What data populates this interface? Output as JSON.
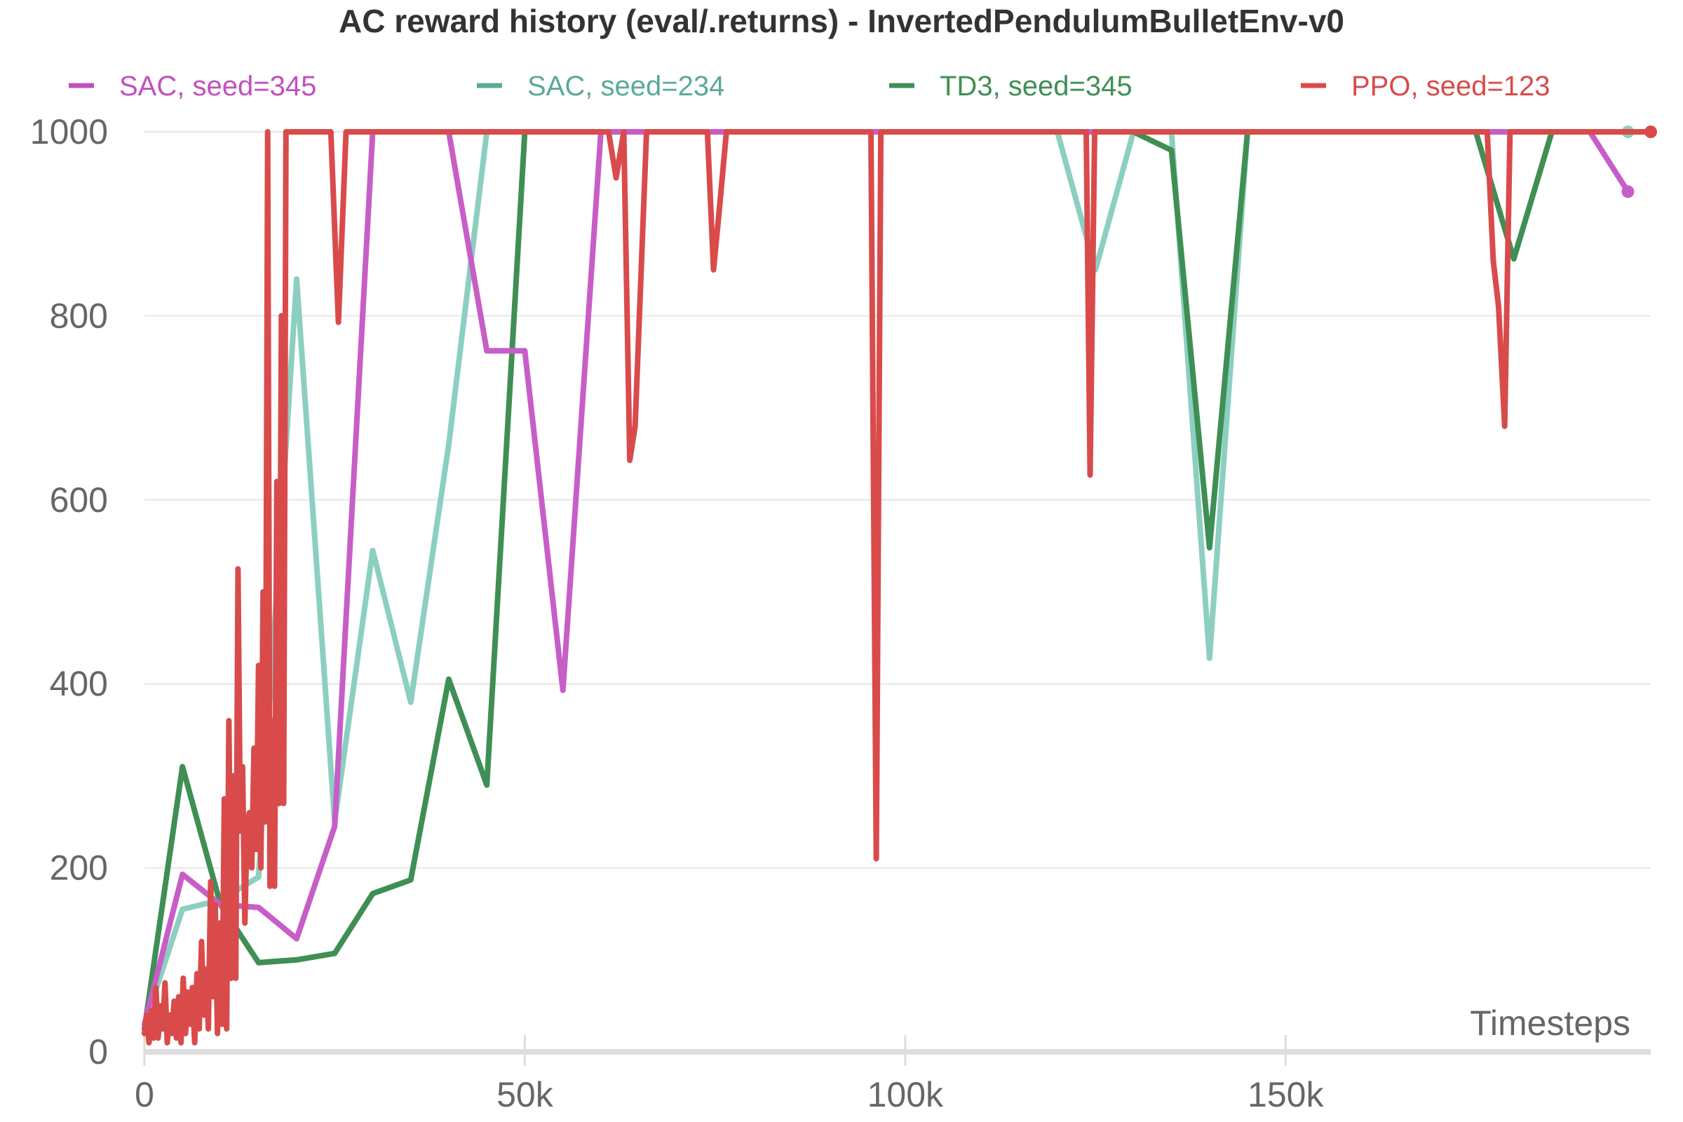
{
  "chart_data": {
    "type": "line",
    "title": "AC reward history (eval/.returns) - InvertedPendulumBulletEnv-v0",
    "xlabel": "Timesteps",
    "ylabel": "",
    "xlim": [
      0,
      198000
    ],
    "ylim": [
      0,
      1000
    ],
    "x_ticks": [
      0,
      50000,
      100000,
      150000
    ],
    "x_tick_labels": [
      "0",
      "50k",
      "100k",
      "150k"
    ],
    "y_ticks": [
      0,
      200,
      400,
      600,
      800,
      1000
    ],
    "y_tick_labels": [
      "0",
      "200",
      "400",
      "600",
      "800",
      "1000"
    ],
    "grid": true,
    "legend_position": "top",
    "series": [
      {
        "name": "SAC, seed=234",
        "color": "#8ccfc0",
        "legend_color": "#5aaa98",
        "end_marker": true,
        "x": [
          0,
          5000,
          10000,
          15000,
          20000,
          25000,
          30000,
          35000,
          40000,
          45000,
          50000,
          55000,
          60000,
          65000,
          70000,
          75000,
          80000,
          85000,
          90000,
          95000,
          100000,
          105000,
          110000,
          115000,
          120000,
          125000,
          130000,
          135000,
          140000,
          145000,
          150000,
          155000,
          160000,
          165000,
          170000,
          175000,
          180000,
          185000,
          190000,
          195000
        ],
        "y": [
          30,
          155,
          165,
          190,
          840,
          250,
          545,
          380,
          660,
          1000,
          1000,
          1000,
          1000,
          1000,
          1000,
          1000,
          1000,
          1000,
          1000,
          1000,
          1000,
          1000,
          1000,
          1000,
          1000,
          850,
          1000,
          1000,
          428,
          1000,
          1000,
          1000,
          1000,
          1000,
          1000,
          1000,
          1000,
          1000,
          1000,
          1000
        ]
      },
      {
        "name": "TD3, seed=345",
        "color": "#3f8f55",
        "legend_color": "#3f8f55",
        "end_marker": false,
        "x": [
          0,
          5000,
          10000,
          15000,
          20000,
          25000,
          30000,
          35000,
          40000,
          45000,
          50000,
          55000,
          60000,
          65000,
          70000,
          75000,
          80000,
          85000,
          90000,
          95000,
          100000,
          105000,
          110000,
          115000,
          120000,
          125000,
          130000,
          135000,
          140000,
          145000,
          150000,
          155000,
          160000,
          165000,
          170000,
          175000,
          180000,
          185000,
          190000,
          195000,
          198000
        ],
        "y": [
          25,
          310,
          160,
          97,
          100,
          107,
          172,
          187,
          405,
          290,
          1000,
          1000,
          1000,
          1000,
          1000,
          1000,
          1000,
          1000,
          1000,
          1000,
          1000,
          1000,
          1000,
          1000,
          1000,
          1000,
          1000,
          980,
          548,
          1000,
          1000,
          1000,
          1000,
          1000,
          1000,
          1000,
          862,
          1000,
          1000,
          1000,
          1000
        ]
      },
      {
        "name": "SAC, seed=345",
        "color": "#c75ec7",
        "legend_color": "#c150bf",
        "end_marker": true,
        "x": [
          0,
          5000,
          10000,
          15000,
          20000,
          25000,
          30000,
          35000,
          40000,
          45000,
          50000,
          55000,
          60000,
          65000,
          70000,
          75000,
          80000,
          85000,
          90000,
          95000,
          100000,
          105000,
          110000,
          115000,
          120000,
          125000,
          130000,
          135000,
          140000,
          145000,
          150000,
          155000,
          160000,
          165000,
          170000,
          175000,
          180000,
          185000,
          190000,
          195000
        ],
        "y": [
          30,
          193,
          160,
          157,
          123,
          245,
          1000,
          1000,
          1000,
          762,
          762,
          393,
          1000,
          1000,
          1000,
          1000,
          1000,
          1000,
          1000,
          1000,
          1000,
          1000,
          1000,
          1000,
          1000,
          1000,
          1000,
          1000,
          1000,
          1000,
          1000,
          1000,
          1000,
          1000,
          1000,
          1000,
          1000,
          1000,
          1000,
          935
        ]
      },
      {
        "name": "PPO, seed=123",
        "color": "#d94b4b",
        "legend_color": "#d94b4b",
        "end_marker": true,
        "x": [
          0,
          300,
          600,
          900,
          1200,
          1500,
          1800,
          2100,
          2400,
          2700,
          3000,
          3300,
          3600,
          3900,
          4200,
          4500,
          4800,
          5100,
          5400,
          5700,
          6000,
          6300,
          6600,
          6900,
          7200,
          7500,
          7800,
          8100,
          8400,
          8700,
          9000,
          9300,
          9600,
          9900,
          10200,
          10500,
          10800,
          11100,
          11400,
          11700,
          12000,
          12300,
          12600,
          12900,
          13200,
          13500,
          13800,
          14100,
          14400,
          14700,
          15000,
          15300,
          15600,
          15900,
          16200,
          16500,
          16800,
          17100,
          17400,
          17700,
          18000,
          18300,
          18600,
          18900,
          19200,
          19500,
          19800,
          20100,
          20400,
          20700,
          21000,
          24500,
          25500,
          26500,
          27500,
          61000,
          62000,
          63000,
          63800,
          64500,
          66000,
          74000,
          74800,
          75500,
          76500,
          95500,
          96200,
          96800,
          123800,
          124300,
          124900,
          176500,
          177300,
          178000,
          178800,
          179500,
          198000
        ],
        "y": [
          20,
          40,
          10,
          45,
          15,
          70,
          15,
          50,
          25,
          75,
          10,
          40,
          20,
          55,
          15,
          60,
          10,
          80,
          20,
          65,
          30,
          70,
          10,
          85,
          25,
          120,
          40,
          90,
          25,
          185,
          60,
          160,
          20,
          140,
          30,
          275,
          25,
          360,
          80,
          300,
          80,
          525,
          240,
          310,
          140,
          250,
          260,
          200,
          330,
          220,
          420,
          200,
          500,
          250,
          1000,
          180,
          360,
          180,
          620,
          270,
          800,
          270,
          1000,
          1000,
          1000,
          1000,
          1000,
          1000,
          1000,
          1000,
          1000,
          1000,
          793,
          1000,
          1000,
          1000,
          950,
          1000,
          643,
          680,
          1000,
          1000,
          850,
          910,
          1000,
          1000,
          210,
          1000,
          1000,
          627,
          1000,
          1000,
          860,
          810,
          680,
          1000,
          1000
        ]
      }
    ],
    "legend_order": [
      "SAC, seed=345",
      "SAC, seed=234",
      "TD3, seed=345",
      "PPO, seed=123"
    ]
  }
}
